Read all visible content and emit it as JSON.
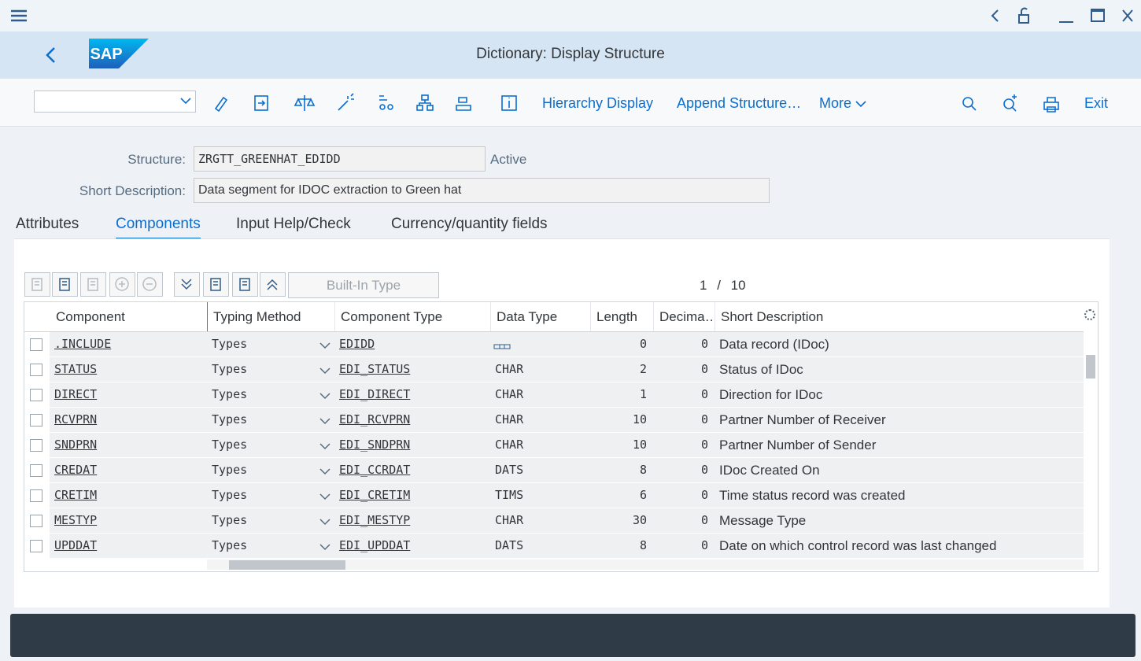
{
  "header": {
    "logo": "SAP",
    "title": "Dictionary: Display Structure"
  },
  "toolbar": {
    "hierarchy": "Hierarchy Display",
    "append": "Append Structure…",
    "more": "More",
    "exit": "Exit"
  },
  "form": {
    "structure_label": "Structure:",
    "structure_value": "ZRGTT_GREENHAT_EDIDD",
    "status": "Active",
    "short_desc_label": "Short Description:",
    "short_desc_value": "Data segment for IDOC extraction to Green hat"
  },
  "tabs": [
    "Attributes",
    "Components",
    "Input Help/Check",
    "Currency/quantity fields"
  ],
  "table": {
    "button": "Built-In Type",
    "pager": {
      "current": 1,
      "separator": "/",
      "total": 10
    },
    "columns": [
      "Component",
      "Typing Method",
      "Component Type",
      "Data Type",
      "Length",
      "Decima…",
      "Short Description"
    ],
    "rows": [
      [
        ".INCLUDE",
        "Types",
        "EDIDD",
        null,
        0,
        0,
        "Data record (IDoc)"
      ],
      [
        "STATUS",
        "Types",
        "EDI_STATUS",
        "CHAR",
        2,
        0,
        "Status of IDoc"
      ],
      [
        "DIRECT",
        "Types",
        "EDI_DIRECT",
        "CHAR",
        1,
        0,
        "Direction for IDoc"
      ],
      [
        "RCVPRN",
        "Types",
        "EDI_RCVPRN",
        "CHAR",
        10,
        0,
        "Partner Number of Receiver"
      ],
      [
        "SNDPRN",
        "Types",
        "EDI_SNDPRN",
        "CHAR",
        10,
        0,
        "Partner Number of Sender"
      ],
      [
        "CREDAT",
        "Types",
        "EDI_CCRDAT",
        "DATS",
        8,
        0,
        "IDoc Created On"
      ],
      [
        "CRETIM",
        "Types",
        "EDI_CRETIM",
        "TIMS",
        6,
        0,
        "Time status record was created"
      ],
      [
        "MESTYP",
        "Types",
        "EDI_MESTYP",
        "CHAR",
        30,
        0,
        "Message Type"
      ],
      [
        "UPDDAT",
        "Types",
        "EDI_UPDDAT",
        "DATS",
        8,
        0,
        "Date on which control record was last changed"
      ]
    ]
  }
}
